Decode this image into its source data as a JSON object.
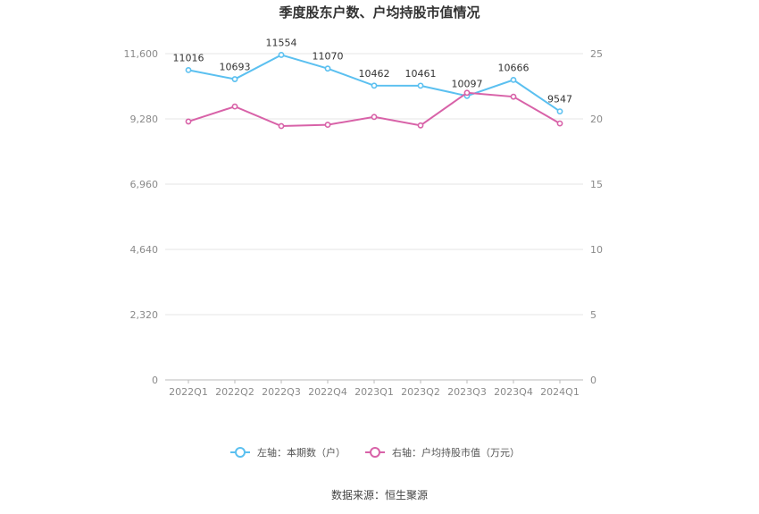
{
  "chart_data": {
    "type": "line",
    "title": "季度股东户数、户均持股市值情况",
    "categories": [
      "2022Q1",
      "2022Q2",
      "2022Q3",
      "2022Q4",
      "2023Q1",
      "2023Q2",
      "2023Q3",
      "2023Q4",
      "2024Q1"
    ],
    "left_axis": {
      "ticks": [
        "0",
        "2,320",
        "4,640",
        "6,960",
        "9,280",
        "11,600"
      ],
      "ylim": [
        0,
        11600
      ]
    },
    "right_axis": {
      "ticks": [
        "0",
        "5",
        "10",
        "15",
        "20",
        "25"
      ],
      "ylim": [
        0,
        25
      ]
    },
    "series": [
      {
        "name": "左轴：本期数（户）",
        "axis": "left",
        "color": "#5bc0f0",
        "values": [
          11016,
          10693,
          11554,
          11070,
          10462,
          10461,
          10097,
          10666,
          9547
        ],
        "labels": [
          "11016",
          "10693",
          "11554",
          "11070",
          "10462",
          "10461",
          "10097",
          "10666",
          "9547"
        ]
      },
      {
        "name": "右轴：户均持股市值（万元）",
        "axis": "right",
        "color": "#d862a8",
        "values": [
          19.8,
          20.95,
          19.45,
          19.55,
          20.15,
          19.5,
          22.0,
          21.7,
          19.65
        ]
      }
    ],
    "grid": true,
    "legend": "bottom-center",
    "source": "数据来源：恒生聚源"
  }
}
